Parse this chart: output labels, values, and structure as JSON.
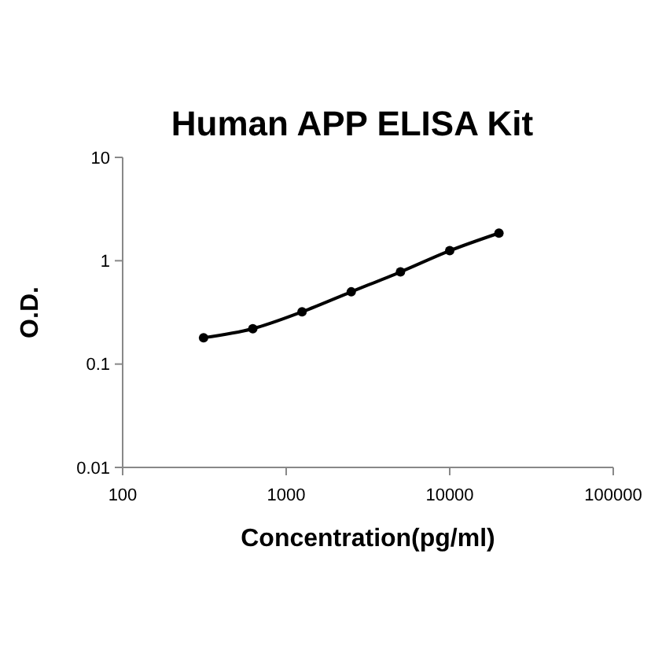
{
  "chart_data": {
    "type": "line",
    "title": "Human APP ELISA Kit",
    "xlabel": "Concentration(pg/ml)",
    "ylabel": "O.D.",
    "log": "xy",
    "marker": "circle",
    "line_style": "solid",
    "grid": false,
    "series": [
      {
        "color": "#000000",
        "x": [
          312.5,
          625,
          1250,
          2500,
          5000,
          10000,
          20000
        ],
        "values": [
          0.18,
          0.22,
          0.32,
          0.5,
          0.78,
          1.25,
          1.85
        ]
      }
    ],
    "xlim": [
      100,
      100000
    ],
    "xticks": [
      100,
      1000,
      10000,
      100000
    ],
    "ylim": [
      0.01,
      10
    ],
    "yticks": [
      0.01,
      0.1,
      1,
      10
    ]
  }
}
